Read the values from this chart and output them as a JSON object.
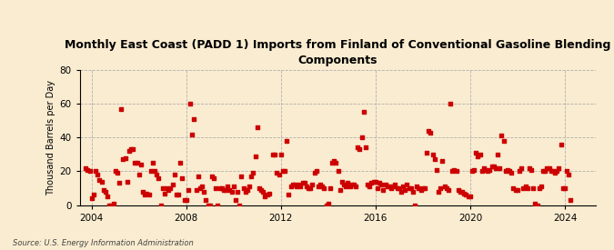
{
  "title": "Monthly East Coast (PADD 1) Imports from Finland of Conventional Gasoline Blending\nComponents",
  "ylabel": "Thousand Barrels per Day",
  "source": "Source: U.S. Energy Information Administration",
  "background_color": "#faecd0",
  "scatter_color": "#cc0000",
  "marker_size": 7,
  "xlim": [
    2003.5,
    2025.3
  ],
  "ylim": [
    0,
    80
  ],
  "yticks": [
    0,
    20,
    40,
    60,
    80
  ],
  "xticks": [
    2004,
    2008,
    2012,
    2016,
    2020,
    2024
  ],
  "data_points": [
    [
      2003.75,
      22
    ],
    [
      2003.83,
      21
    ],
    [
      2003.92,
      20
    ],
    [
      2004.0,
      4
    ],
    [
      2004.08,
      6
    ],
    [
      2004.17,
      20
    ],
    [
      2004.25,
      18
    ],
    [
      2004.33,
      15
    ],
    [
      2004.42,
      14
    ],
    [
      2004.5,
      9
    ],
    [
      2004.58,
      8
    ],
    [
      2004.67,
      5
    ],
    [
      2004.75,
      0
    ],
    [
      2004.83,
      0
    ],
    [
      2004.92,
      1
    ],
    [
      2005.0,
      20
    ],
    [
      2005.08,
      19
    ],
    [
      2005.17,
      13
    ],
    [
      2005.25,
      57
    ],
    [
      2005.33,
      27
    ],
    [
      2005.42,
      28
    ],
    [
      2005.5,
      14
    ],
    [
      2005.58,
      32
    ],
    [
      2005.67,
      33
    ],
    [
      2005.75,
      33
    ],
    [
      2005.83,
      25
    ],
    [
      2005.92,
      25
    ],
    [
      2006.0,
      18
    ],
    [
      2006.08,
      24
    ],
    [
      2006.17,
      8
    ],
    [
      2006.25,
      6
    ],
    [
      2006.33,
      7
    ],
    [
      2006.42,
      6
    ],
    [
      2006.5,
      20
    ],
    [
      2006.58,
      25
    ],
    [
      2006.67,
      20
    ],
    [
      2006.75,
      18
    ],
    [
      2006.83,
      16
    ],
    [
      2006.92,
      0
    ],
    [
      2007.0,
      10
    ],
    [
      2007.08,
      7
    ],
    [
      2007.17,
      10
    ],
    [
      2007.25,
      9
    ],
    [
      2007.33,
      10
    ],
    [
      2007.42,
      12
    ],
    [
      2007.5,
      18
    ],
    [
      2007.58,
      6
    ],
    [
      2007.67,
      6
    ],
    [
      2007.75,
      25
    ],
    [
      2007.83,
      16
    ],
    [
      2007.92,
      3
    ],
    [
      2008.0,
      3
    ],
    [
      2008.08,
      9
    ],
    [
      2008.17,
      60
    ],
    [
      2008.25,
      42
    ],
    [
      2008.33,
      51
    ],
    [
      2008.42,
      9
    ],
    [
      2008.5,
      17
    ],
    [
      2008.58,
      10
    ],
    [
      2008.67,
      11
    ],
    [
      2008.75,
      8
    ],
    [
      2008.83,
      3
    ],
    [
      2008.92,
      0
    ],
    [
      2009.0,
      0
    ],
    [
      2009.08,
      17
    ],
    [
      2009.17,
      16
    ],
    [
      2009.25,
      10
    ],
    [
      2009.33,
      0
    ],
    [
      2009.42,
      10
    ],
    [
      2009.5,
      10
    ],
    [
      2009.58,
      9
    ],
    [
      2009.67,
      9
    ],
    [
      2009.75,
      11
    ],
    [
      2009.83,
      9
    ],
    [
      2009.92,
      8
    ],
    [
      2010.0,
      11
    ],
    [
      2010.08,
      3
    ],
    [
      2010.17,
      8
    ],
    [
      2010.25,
      0
    ],
    [
      2010.33,
      17
    ],
    [
      2010.42,
      10
    ],
    [
      2010.5,
      8
    ],
    [
      2010.58,
      9
    ],
    [
      2010.67,
      11
    ],
    [
      2010.75,
      17
    ],
    [
      2010.83,
      19
    ],
    [
      2010.92,
      29
    ],
    [
      2011.0,
      46
    ],
    [
      2011.08,
      10
    ],
    [
      2011.17,
      9
    ],
    [
      2011.25,
      8
    ],
    [
      2011.33,
      5
    ],
    [
      2011.42,
      6
    ],
    [
      2011.5,
      7
    ],
    [
      2011.67,
      30
    ],
    [
      2011.75,
      30
    ],
    [
      2011.83,
      19
    ],
    [
      2011.92,
      18
    ],
    [
      2012.0,
      30
    ],
    [
      2012.08,
      20
    ],
    [
      2012.17,
      20
    ],
    [
      2012.25,
      38
    ],
    [
      2012.33,
      6
    ],
    [
      2012.42,
      11
    ],
    [
      2012.5,
      12
    ],
    [
      2012.58,
      12
    ],
    [
      2012.67,
      11
    ],
    [
      2012.75,
      12
    ],
    [
      2012.83,
      11
    ],
    [
      2012.92,
      13
    ],
    [
      2013.0,
      13
    ],
    [
      2013.08,
      11
    ],
    [
      2013.17,
      10
    ],
    [
      2013.25,
      10
    ],
    [
      2013.33,
      12
    ],
    [
      2013.42,
      19
    ],
    [
      2013.5,
      20
    ],
    [
      2013.58,
      11
    ],
    [
      2013.67,
      12
    ],
    [
      2013.75,
      11
    ],
    [
      2013.83,
      10
    ],
    [
      2013.92,
      0
    ],
    [
      2014.0,
      1
    ],
    [
      2014.08,
      10
    ],
    [
      2014.17,
      25
    ],
    [
      2014.25,
      26
    ],
    [
      2014.33,
      25
    ],
    [
      2014.42,
      20
    ],
    [
      2014.5,
      9
    ],
    [
      2014.58,
      14
    ],
    [
      2014.67,
      12
    ],
    [
      2014.75,
      11
    ],
    [
      2014.83,
      13
    ],
    [
      2014.92,
      11
    ],
    [
      2015.0,
      12
    ],
    [
      2015.08,
      12
    ],
    [
      2015.17,
      11
    ],
    [
      2015.25,
      34
    ],
    [
      2015.33,
      33
    ],
    [
      2015.42,
      40
    ],
    [
      2015.5,
      55
    ],
    [
      2015.58,
      34
    ],
    [
      2015.67,
      12
    ],
    [
      2015.75,
      11
    ],
    [
      2015.83,
      13
    ],
    [
      2015.92,
      14
    ],
    [
      2016.0,
      14
    ],
    [
      2016.08,
      10
    ],
    [
      2016.17,
      13
    ],
    [
      2016.25,
      12
    ],
    [
      2016.33,
      9
    ],
    [
      2016.42,
      12
    ],
    [
      2016.5,
      11
    ],
    [
      2016.58,
      11
    ],
    [
      2016.67,
      10
    ],
    [
      2016.75,
      11
    ],
    [
      2016.83,
      12
    ],
    [
      2016.92,
      10
    ],
    [
      2017.0,
      10
    ],
    [
      2017.08,
      8
    ],
    [
      2017.17,
      11
    ],
    [
      2017.25,
      9
    ],
    [
      2017.33,
      12
    ],
    [
      2017.42,
      10
    ],
    [
      2017.5,
      10
    ],
    [
      2017.58,
      8
    ],
    [
      2017.67,
      0
    ],
    [
      2017.75,
      11
    ],
    [
      2017.83,
      10
    ],
    [
      2017.92,
      9
    ],
    [
      2018.0,
      10
    ],
    [
      2018.08,
      10
    ],
    [
      2018.17,
      31
    ],
    [
      2018.25,
      44
    ],
    [
      2018.33,
      43
    ],
    [
      2018.42,
      30
    ],
    [
      2018.5,
      27
    ],
    [
      2018.58,
      21
    ],
    [
      2018.67,
      8
    ],
    [
      2018.75,
      10
    ],
    [
      2018.83,
      26
    ],
    [
      2018.92,
      11
    ],
    [
      2019.0,
      10
    ],
    [
      2019.08,
      9
    ],
    [
      2019.17,
      60
    ],
    [
      2019.25,
      20
    ],
    [
      2019.33,
      21
    ],
    [
      2019.42,
      20
    ],
    [
      2019.5,
      9
    ],
    [
      2019.58,
      8
    ],
    [
      2019.67,
      8
    ],
    [
      2019.75,
      7
    ],
    [
      2019.83,
      6
    ],
    [
      2019.92,
      5
    ],
    [
      2020.0,
      5
    ],
    [
      2020.08,
      20
    ],
    [
      2020.17,
      21
    ],
    [
      2020.25,
      31
    ],
    [
      2020.33,
      29
    ],
    [
      2020.42,
      30
    ],
    [
      2020.5,
      20
    ],
    [
      2020.58,
      22
    ],
    [
      2020.67,
      21
    ],
    [
      2020.75,
      20
    ],
    [
      2020.83,
      21
    ],
    [
      2020.92,
      23
    ],
    [
      2021.0,
      23
    ],
    [
      2021.08,
      22
    ],
    [
      2021.17,
      30
    ],
    [
      2021.25,
      22
    ],
    [
      2021.33,
      41
    ],
    [
      2021.42,
      38
    ],
    [
      2021.5,
      20
    ],
    [
      2021.58,
      21
    ],
    [
      2021.67,
      20
    ],
    [
      2021.75,
      19
    ],
    [
      2021.83,
      10
    ],
    [
      2021.92,
      9
    ],
    [
      2022.0,
      9
    ],
    [
      2022.08,
      20
    ],
    [
      2022.17,
      22
    ],
    [
      2022.25,
      10
    ],
    [
      2022.33,
      11
    ],
    [
      2022.42,
      10
    ],
    [
      2022.5,
      22
    ],
    [
      2022.58,
      21
    ],
    [
      2022.67,
      10
    ],
    [
      2022.75,
      1
    ],
    [
      2022.83,
      0
    ],
    [
      2022.92,
      10
    ],
    [
      2023.0,
      11
    ],
    [
      2023.08,
      20
    ],
    [
      2023.17,
      20
    ],
    [
      2023.25,
      22
    ],
    [
      2023.33,
      22
    ],
    [
      2023.42,
      20
    ],
    [
      2023.5,
      20
    ],
    [
      2023.58,
      19
    ],
    [
      2023.67,
      20
    ],
    [
      2023.75,
      22
    ],
    [
      2023.83,
      36
    ],
    [
      2023.92,
      10
    ],
    [
      2024.0,
      10
    ],
    [
      2024.08,
      20
    ],
    [
      2024.17,
      18
    ],
    [
      2024.25,
      3
    ]
  ]
}
